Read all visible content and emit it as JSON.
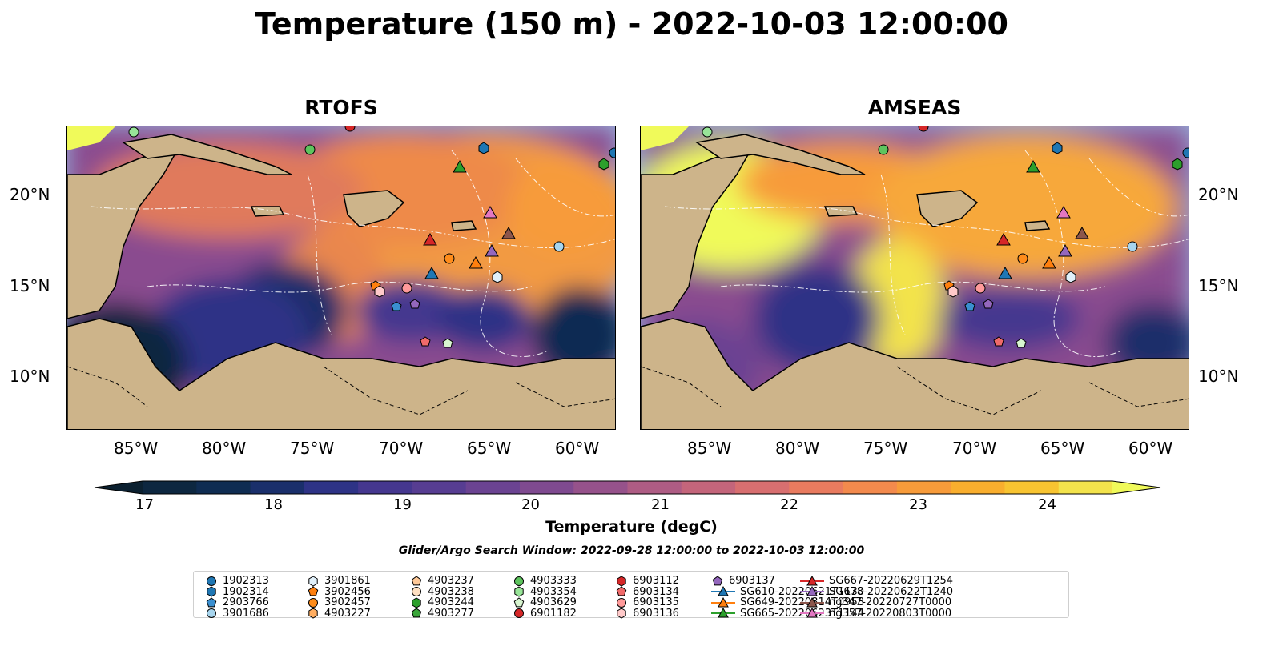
{
  "title": "Temperature (150 m) - 2022-10-03 12:00:00",
  "panels": [
    {
      "title": "RTOFS"
    },
    {
      "title": "AMSEAS"
    }
  ],
  "lat_labels": [
    "20°N",
    "15°N",
    "10°N"
  ],
  "lon_labels": [
    "85°W",
    "80°W",
    "75°W",
    "70°W",
    "65°W",
    "60°W"
  ],
  "colorbar": {
    "title": "Temperature (degC)",
    "ticks": [
      "17",
      "18",
      "19",
      "20",
      "21",
      "22",
      "23",
      "24"
    ],
    "colors": [
      "#0d2740",
      "#0f2c52",
      "#1a2f6b",
      "#2e3386",
      "#45378f",
      "#573d92",
      "#6b4392",
      "#7f4a90",
      "#96528b",
      "#ae5c84",
      "#c4657b",
      "#d86f70",
      "#e97b5f",
      "#f38a4d",
      "#f79b3a",
      "#f9ae2e",
      "#f8c431",
      "#f3e34c"
    ],
    "under_color": "#0b2030",
    "over_color": "#f0fa5a"
  },
  "search_window": "Glider/Argo Search Window: 2022-09-28 12:00:00 to 2022-10-03 12:00:00",
  "legend": [
    {
      "label": "1902313",
      "marker": "circle",
      "color": "#1f77b4"
    },
    {
      "label": "1902314",
      "marker": "hexagon",
      "color": "#1f77b4"
    },
    {
      "label": "2903766",
      "marker": "pentagon",
      "color": "#3a8fd0"
    },
    {
      "label": "3901686",
      "marker": "circle",
      "color": "#a7d5ee"
    },
    {
      "label": "3901861",
      "marker": "hexagon",
      "color": "#e0f0fa"
    },
    {
      "label": "3902456",
      "marker": "pentagon",
      "color": "#ff7f0e"
    },
    {
      "label": "3902457",
      "marker": "circle",
      "color": "#ff8c1a"
    },
    {
      "label": "4903227",
      "marker": "hexagon",
      "color": "#ffad60"
    },
    {
      "label": "4903237",
      "marker": "pentagon",
      "color": "#ffc998"
    },
    {
      "label": "4903238",
      "marker": "circle",
      "color": "#ffe0c2"
    },
    {
      "label": "4903244",
      "marker": "hexagon",
      "color": "#2ca02c"
    },
    {
      "label": "4903277",
      "marker": "pentagon",
      "color": "#3aa63a"
    },
    {
      "label": "4903333",
      "marker": "circle",
      "color": "#5ec45e"
    },
    {
      "label": "4903354",
      "marker": "hexagon",
      "color": "#98e598"
    },
    {
      "label": "4903629",
      "marker": "pentagon",
      "color": "#d8f5d0"
    },
    {
      "label": "6901182",
      "marker": "circle",
      "color": "#d62728"
    },
    {
      "label": "6903112",
      "marker": "hexagon",
      "color": "#d62728"
    },
    {
      "label": "6903134",
      "marker": "pentagon",
      "color": "#f06a6a"
    },
    {
      "label": "6903135",
      "marker": "circle",
      "color": "#ff9a9a"
    },
    {
      "label": "6903136",
      "marker": "hexagon",
      "color": "#ffc9c9"
    },
    {
      "label": "6903137",
      "marker": "pentagon",
      "color": "#9467bd"
    },
    {
      "label": "SG610-20220621T1130",
      "marker": "triangle",
      "color": "#1f77b4"
    },
    {
      "label": "SG649-20220814T0958",
      "marker": "triangle",
      "color": "#ff7f0e"
    },
    {
      "label": "SG665-20220623T1144",
      "marker": "triangle",
      "color": "#2ca02c"
    },
    {
      "label": "SG667-20220629T1254",
      "marker": "triangle",
      "color": "#d62728"
    },
    {
      "label": "SG678-20220622T1240",
      "marker": "triangle",
      "color": "#9467bd"
    },
    {
      "label": "ng347-20220727T0000",
      "marker": "triangle",
      "color": "#8c564b"
    },
    {
      "label": "ng357-20220803T0000",
      "marker": "triangle",
      "color": "#e377c2"
    }
  ]
}
